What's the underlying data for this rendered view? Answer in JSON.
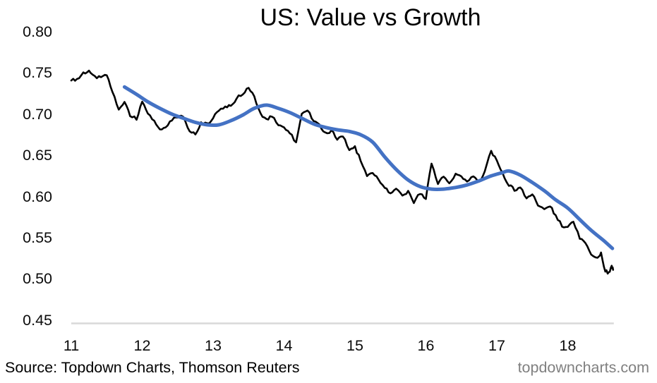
{
  "footer": {
    "source": "Source: Topdown Charts, Thomson Reuters",
    "watermark": "topdowncharts.com"
  },
  "colors": {
    "title_text": "#000000",
    "tick_text": "#0b0b0b",
    "source_text": "#000000",
    "watermark_text": "#808080",
    "axis_line": "#d9d9d9",
    "ratio_line": "#000000",
    "smoothed_line": "#4472c4"
  },
  "chart_data": {
    "type": "line",
    "title": "US: Value vs Growth",
    "xlabel": "",
    "ylabel": "",
    "xlim": [
      11,
      18.65
    ],
    "ylim": [
      0.45,
      0.8
    ],
    "grid": false,
    "legend": "none",
    "x_ticks": [
      {
        "label": "11",
        "value": 11
      },
      {
        "label": "12",
        "value": 12
      },
      {
        "label": "13",
        "value": 13
      },
      {
        "label": "14",
        "value": 14
      },
      {
        "label": "15",
        "value": 15
      },
      {
        "label": "16",
        "value": 16
      },
      {
        "label": "17",
        "value": 17
      },
      {
        "label": "18",
        "value": 18
      }
    ],
    "y_ticks": [
      {
        "label": "0.80",
        "value": 0.8
      },
      {
        "label": "0.75",
        "value": 0.75
      },
      {
        "label": "0.70",
        "value": 0.7
      },
      {
        "label": "0.65",
        "value": 0.65
      },
      {
        "label": "0.60",
        "value": 0.6
      },
      {
        "label": "0.55",
        "value": 0.55
      },
      {
        "label": "0.50",
        "value": 0.5
      },
      {
        "label": "0.45",
        "value": 0.45
      }
    ],
    "series": [
      {
        "name": "value-growth-ratio",
        "style": "jagged",
        "color": "#000000",
        "width": 2.6,
        "points": [
          [
            11.0,
            0.741
          ],
          [
            11.08,
            0.742
          ],
          [
            11.17,
            0.75
          ],
          [
            11.25,
            0.753
          ],
          [
            11.33,
            0.746
          ],
          [
            11.42,
            0.744
          ],
          [
            11.5,
            0.747
          ],
          [
            11.58,
            0.728
          ],
          [
            11.67,
            0.706
          ],
          [
            11.75,
            0.714
          ],
          [
            11.83,
            0.698
          ],
          [
            11.92,
            0.694
          ],
          [
            12.0,
            0.714
          ],
          [
            12.08,
            0.7
          ],
          [
            12.17,
            0.691
          ],
          [
            12.25,
            0.681
          ],
          [
            12.33,
            0.684
          ],
          [
            12.42,
            0.692
          ],
          [
            12.5,
            0.697
          ],
          [
            12.58,
            0.696
          ],
          [
            12.67,
            0.68
          ],
          [
            12.75,
            0.675
          ],
          [
            12.83,
            0.689
          ],
          [
            12.92,
            0.688
          ],
          [
            13.0,
            0.695
          ],
          [
            13.08,
            0.704
          ],
          [
            13.17,
            0.709
          ],
          [
            13.25,
            0.711
          ],
          [
            13.33,
            0.719
          ],
          [
            13.42,
            0.725
          ],
          [
            13.5,
            0.731
          ],
          [
            13.58,
            0.722
          ],
          [
            13.67,
            0.7
          ],
          [
            13.75,
            0.694
          ],
          [
            13.83,
            0.697
          ],
          [
            13.92,
            0.687
          ],
          [
            14.0,
            0.683
          ],
          [
            14.08,
            0.677
          ],
          [
            14.17,
            0.666
          ],
          [
            14.25,
            0.7
          ],
          [
            14.33,
            0.704
          ],
          [
            14.42,
            0.692
          ],
          [
            14.5,
            0.687
          ],
          [
            14.58,
            0.677
          ],
          [
            14.67,
            0.68
          ],
          [
            14.75,
            0.67
          ],
          [
            14.83,
            0.673
          ],
          [
            14.92,
            0.656
          ],
          [
            15.0,
            0.66
          ],
          [
            15.08,
            0.643
          ],
          [
            15.17,
            0.625
          ],
          [
            15.25,
            0.629
          ],
          [
            15.33,
            0.621
          ],
          [
            15.42,
            0.61
          ],
          [
            15.5,
            0.604
          ],
          [
            15.58,
            0.609
          ],
          [
            15.67,
            0.6
          ],
          [
            15.75,
            0.606
          ],
          [
            15.83,
            0.593
          ],
          [
            15.92,
            0.604
          ],
          [
            16.0,
            0.598
          ],
          [
            16.08,
            0.64
          ],
          [
            16.17,
            0.616
          ],
          [
            16.25,
            0.625
          ],
          [
            16.33,
            0.616
          ],
          [
            16.42,
            0.628
          ],
          [
            16.5,
            0.624
          ],
          [
            16.58,
            0.619
          ],
          [
            16.67,
            0.624
          ],
          [
            16.75,
            0.618
          ],
          [
            16.83,
            0.63
          ],
          [
            16.92,
            0.655
          ],
          [
            17.0,
            0.643
          ],
          [
            17.08,
            0.628
          ],
          [
            17.17,
            0.614
          ],
          [
            17.25,
            0.608
          ],
          [
            17.33,
            0.611
          ],
          [
            17.42,
            0.598
          ],
          [
            17.5,
            0.602
          ],
          [
            17.58,
            0.59
          ],
          [
            17.67,
            0.585
          ],
          [
            17.75,
            0.589
          ],
          [
            17.83,
            0.577
          ],
          [
            17.92,
            0.564
          ],
          [
            18.0,
            0.562
          ],
          [
            18.08,
            0.569
          ],
          [
            18.17,
            0.549
          ],
          [
            18.25,
            0.543
          ],
          [
            18.33,
            0.53
          ],
          [
            18.42,
            0.525
          ],
          [
            18.47,
            0.531
          ],
          [
            18.53,
            0.509
          ],
          [
            18.58,
            0.508
          ],
          [
            18.62,
            0.515
          ],
          [
            18.64,
            0.511
          ]
        ]
      },
      {
        "name": "smoothed-trend",
        "style": "smooth",
        "color": "#4472c4",
        "width": 5,
        "points": [
          [
            11.75,
            0.733
          ],
          [
            11.92,
            0.724
          ],
          [
            12.08,
            0.715
          ],
          [
            12.25,
            0.707
          ],
          [
            12.42,
            0.7
          ],
          [
            12.58,
            0.695
          ],
          [
            12.75,
            0.69
          ],
          [
            12.92,
            0.687
          ],
          [
            13.08,
            0.687
          ],
          [
            13.25,
            0.692
          ],
          [
            13.42,
            0.699
          ],
          [
            13.58,
            0.707
          ],
          [
            13.75,
            0.711
          ],
          [
            13.92,
            0.707
          ],
          [
            14.08,
            0.702
          ],
          [
            14.25,
            0.695
          ],
          [
            14.42,
            0.688
          ],
          [
            14.58,
            0.684
          ],
          [
            14.75,
            0.681
          ],
          [
            14.92,
            0.679
          ],
          [
            15.08,
            0.675
          ],
          [
            15.25,
            0.666
          ],
          [
            15.42,
            0.648
          ],
          [
            15.58,
            0.633
          ],
          [
            15.75,
            0.62
          ],
          [
            15.92,
            0.612
          ],
          [
            16.08,
            0.609
          ],
          [
            16.25,
            0.609
          ],
          [
            16.42,
            0.611
          ],
          [
            16.58,
            0.614
          ],
          [
            16.75,
            0.619
          ],
          [
            16.92,
            0.625
          ],
          [
            17.08,
            0.629
          ],
          [
            17.17,
            0.631
          ],
          [
            17.33,
            0.626
          ],
          [
            17.5,
            0.617
          ],
          [
            17.67,
            0.607
          ],
          [
            17.83,
            0.596
          ],
          [
            18.0,
            0.586
          ],
          [
            18.17,
            0.572
          ],
          [
            18.33,
            0.559
          ],
          [
            18.5,
            0.547
          ],
          [
            18.63,
            0.537
          ]
        ]
      }
    ]
  }
}
